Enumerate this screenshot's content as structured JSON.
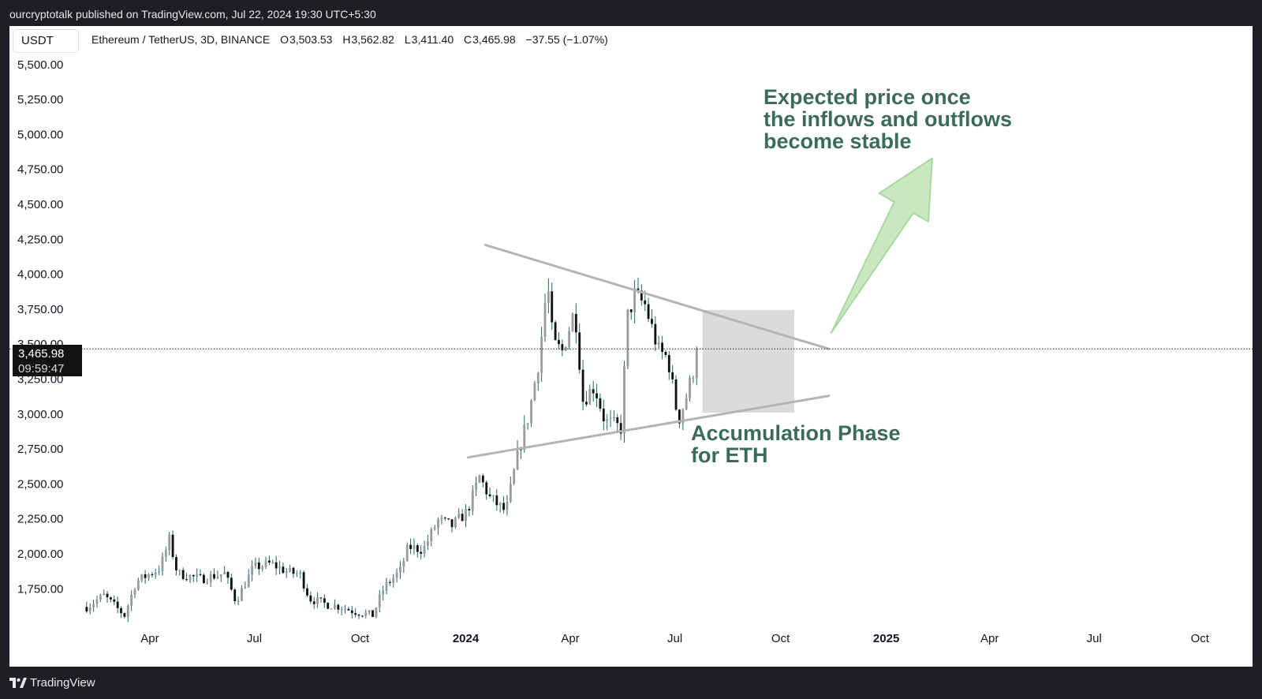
{
  "header": {
    "publish_line": "ourcryptotalk published on TradingView.com, Jul 22, 2024 19:30 UTC+5:30"
  },
  "symbol_box": {
    "label": "USDT"
  },
  "legend": {
    "title": "Ethereum / TetherUS, 3D, BINANCE",
    "open_label": "O",
    "open": "3,503.53",
    "high_label": "H",
    "high": "3,562.82",
    "low_label": "L",
    "low": "3,411.40",
    "close_label": "C",
    "close": "3,465.98",
    "change": "−37.55 (−1.07%)"
  },
  "price_tag": {
    "price": "3,465.98",
    "countdown": "09:59:47"
  },
  "annotations": {
    "accumulation": [
      "Accumulation Phase",
      "for ETH"
    ],
    "expected": [
      "Expected price once",
      "the inflows and outflows",
      "become stable"
    ]
  },
  "footer": {
    "brand": "TradingView",
    "logo_icon": "tradingview-logo-icon"
  },
  "colors": {
    "background": "#1e1f24",
    "chart_bg": "#ffffff",
    "up": "#9b9b9f",
    "down": "#111111",
    "wick": "#1f6b63",
    "annotation_text": "#3d6b5a",
    "arrow_fill": "#c9e7c1",
    "arrow_stroke": "#a7d9a0",
    "trendline": "#b4b4b4",
    "zone": "#d9d9dc"
  },
  "chart_data": {
    "type": "candlestick",
    "timeframe": "3D",
    "y_axis": {
      "side": "left",
      "range": [
        1475,
        5550
      ],
      "ticks": [
        "1,750.00",
        "2,000.00",
        "2,250.00",
        "2,500.00",
        "2,750.00",
        "3,000.00",
        "3,250.00",
        "3,500.00",
        "3,750.00",
        "4,000.00",
        "4,250.00",
        "4,500.00",
        "4,750.00",
        "5,000.00",
        "5,250.00",
        "5,500.00"
      ]
    },
    "x_axis": {
      "range": [
        "2023-02-01",
        "2025-10-07"
      ],
      "ticks": [
        {
          "date": "2023-04-01",
          "label": "Apr",
          "bold": false
        },
        {
          "date": "2023-07-01",
          "label": "Jul",
          "bold": false
        },
        {
          "date": "2023-10-01",
          "label": "Oct",
          "bold": false
        },
        {
          "date": "2024-01-01",
          "label": "2024",
          "bold": true
        },
        {
          "date": "2024-04-01",
          "label": "Apr",
          "bold": false
        },
        {
          "date": "2024-07-01",
          "label": "Jul",
          "bold": false
        },
        {
          "date": "2024-10-01",
          "label": "Oct",
          "bold": false
        },
        {
          "date": "2025-01-01",
          "label": "2025",
          "bold": true
        },
        {
          "date": "2025-04-01",
          "label": "Apr",
          "bold": false
        },
        {
          "date": "2025-07-01",
          "label": "Jul",
          "bold": false
        },
        {
          "date": "2025-10-01",
          "label": "Oct",
          "bold": false
        }
      ]
    },
    "grid": false,
    "last_price_line": 3465.98,
    "close_path": [
      [
        "2023-02-05",
        1620
      ],
      [
        "2023-02-20",
        1700
      ],
      [
        "2023-03-10",
        1560
      ],
      [
        "2023-03-20",
        1800
      ],
      [
        "2023-04-10",
        1900
      ],
      [
        "2023-04-18",
        2100
      ],
      [
        "2023-04-25",
        1860
      ],
      [
        "2023-05-15",
        1820
      ],
      [
        "2023-06-05",
        1860
      ],
      [
        "2023-06-15",
        1660
      ],
      [
        "2023-06-30",
        1900
      ],
      [
        "2023-07-15",
        1930
      ],
      [
        "2023-07-30",
        1870
      ],
      [
        "2023-08-10",
        1850
      ],
      [
        "2023-08-18",
        1680
      ],
      [
        "2023-09-01",
        1640
      ],
      [
        "2023-09-15",
        1620
      ],
      [
        "2023-09-25",
        1590
      ],
      [
        "2023-10-12",
        1560
      ],
      [
        "2023-10-22",
        1760
      ],
      [
        "2023-11-05",
        1880
      ],
      [
        "2023-11-12",
        2050
      ],
      [
        "2023-11-25",
        2030
      ],
      [
        "2023-12-08",
        2240
      ],
      [
        "2023-12-20",
        2200
      ],
      [
        "2024-01-02",
        2300
      ],
      [
        "2024-01-13",
        2550
      ],
      [
        "2024-01-22",
        2400
      ],
      [
        "2024-02-05",
        2300
      ],
      [
        "2024-02-15",
        2700
      ],
      [
        "2024-02-25",
        3000
      ],
      [
        "2024-03-05",
        3400
      ],
      [
        "2024-03-12",
        3950
      ],
      [
        "2024-03-17",
        3500
      ],
      [
        "2024-03-25",
        3450
      ],
      [
        "2024-04-05",
        3750
      ],
      [
        "2024-04-12",
        3100
      ],
      [
        "2024-04-22",
        3200
      ],
      [
        "2024-05-01",
        2950
      ],
      [
        "2024-05-15",
        2900
      ],
      [
        "2024-05-21",
        3700
      ],
      [
        "2024-05-27",
        3850
      ],
      [
        "2024-06-05",
        3780
      ],
      [
        "2024-06-17",
        3450
      ],
      [
        "2024-06-25",
        3400
      ],
      [
        "2024-07-04",
        2950
      ],
      [
        "2024-07-12",
        3150
      ],
      [
        "2024-07-22",
        3466
      ]
    ],
    "trendlines": [
      {
        "name": "upper",
        "from": [
          "2024-01-18",
          4210
        ],
        "to": [
          "2024-11-12",
          3466
        ]
      },
      {
        "name": "lower",
        "from": [
          "2024-01-03",
          2690
        ],
        "to": [
          "2024-11-12",
          3130
        ]
      }
    ],
    "zones": [
      {
        "from": [
          "2024-07-25",
          3745
        ],
        "to": [
          "2024-10-13",
          3010
        ]
      }
    ],
    "arrows": [
      {
        "from": [
          "2024-11-14",
          3580
        ],
        "to": [
          "2025-02-10",
          4830
        ]
      }
    ]
  }
}
